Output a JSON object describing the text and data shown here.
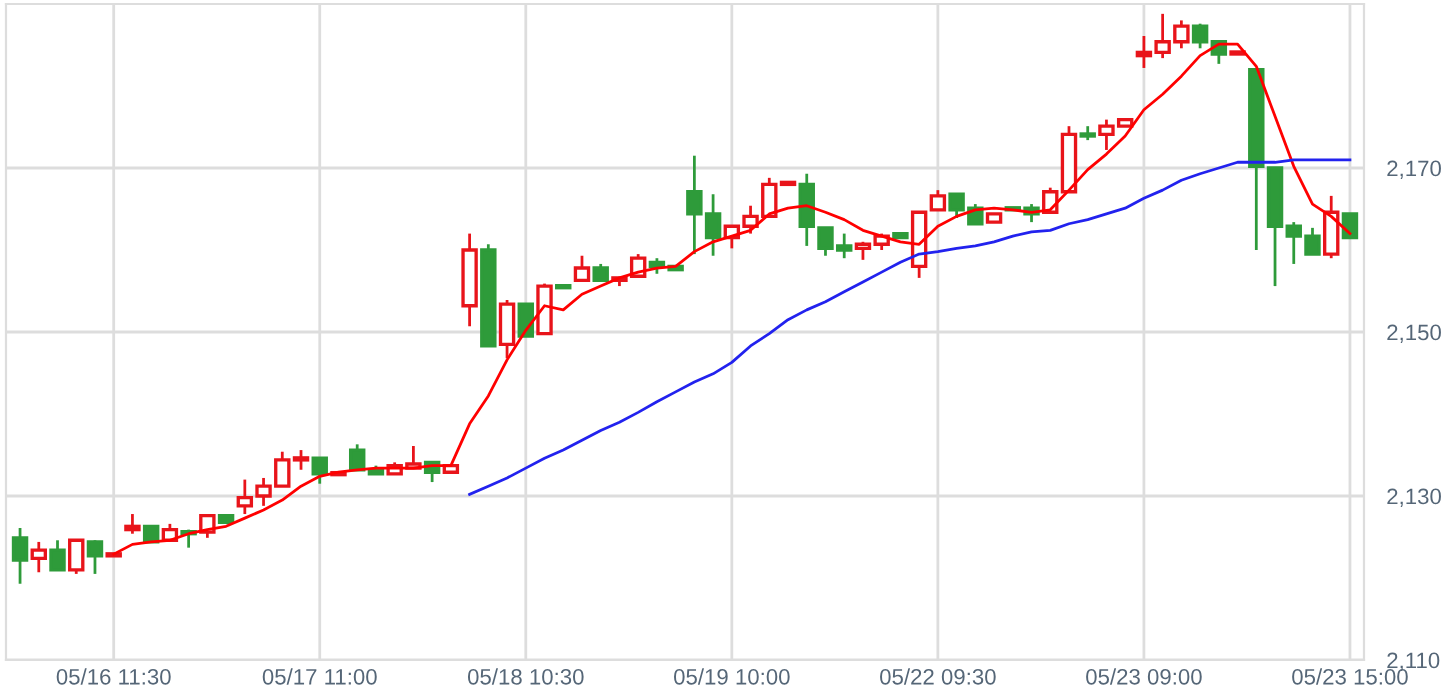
{
  "chart_data": {
    "type": "candlestick",
    "categories": [
      null,
      null,
      null,
      null,
      null,
      "05/16 11:30",
      null,
      null,
      null,
      null,
      null,
      null,
      null,
      null,
      null,
      null,
      "05/17 11:00",
      null,
      null,
      null,
      null,
      null,
      null,
      null,
      null,
      null,
      null,
      "05/18 10:30",
      null,
      null,
      null,
      null,
      null,
      null,
      null,
      null,
      null,
      null,
      "05/19 10:00",
      null,
      null,
      null,
      null,
      null,
      null,
      null,
      null,
      null,
      null,
      "05/22 09:30",
      null,
      null,
      null,
      null,
      null,
      null,
      null,
      null,
      null,
      null,
      "05/23 09:00",
      null,
      null,
      null,
      null,
      null,
      null,
      null,
      null,
      null,
      null,
      "05/23 15:00"
    ],
    "ohlc": [
      [
        2124.9,
        2126.1,
        2119.3,
        2122.2
      ],
      [
        2122.4,
        2124.4,
        2120.7,
        2123.4
      ],
      [
        2123.4,
        2124.6,
        2121.0,
        2121.0
      ],
      [
        2121.0,
        2124.6,
        2120.5,
        2124.6
      ],
      [
        2124.4,
        2124.6,
        2120.5,
        2122.7
      ],
      [
        2122.7,
        2122.9,
        2122.7,
        2122.9
      ],
      [
        2125.9,
        2127.8,
        2125.4,
        2126.3
      ],
      [
        2126.3,
        2126.3,
        2124.4,
        2124.4
      ],
      [
        2124.6,
        2126.6,
        2124.4,
        2125.9
      ],
      [
        2125.6,
        2125.9,
        2123.7,
        2125.4
      ],
      [
        2125.6,
        2127.6,
        2124.9,
        2127.6
      ],
      [
        2127.6,
        2127.6,
        2126.8,
        2126.8
      ],
      [
        2128.8,
        2132.0,
        2127.8,
        2129.8
      ],
      [
        2130.0,
        2132.2,
        2128.8,
        2131.2
      ],
      [
        2131.2,
        2135.4,
        2131.2,
        2134.4
      ],
      [
        2134.4,
        2135.6,
        2133.2,
        2134.6
      ],
      [
        2134.6,
        2134.6,
        2131.5,
        2132.7
      ],
      [
        2132.6,
        2132.7,
        2132.6,
        2132.7
      ],
      [
        2135.6,
        2136.3,
        2133.2,
        2133.2
      ],
      [
        2133.2,
        2133.7,
        2132.7,
        2132.7
      ],
      [
        2132.7,
        2134.1,
        2132.7,
        2133.7
      ],
      [
        2133.4,
        2136.1,
        2133.4,
        2133.9
      ],
      [
        2134.1,
        2134.1,
        2131.7,
        2132.9
      ],
      [
        2132.9,
        2133.7,
        2132.9,
        2133.7
      ],
      [
        2153.2,
        2162.0,
        2150.7,
        2160.0
      ],
      [
        2160.0,
        2160.7,
        2148.3,
        2148.3
      ],
      [
        2148.5,
        2153.9,
        2146.8,
        2153.4
      ],
      [
        2153.4,
        2153.4,
        2149.5,
        2149.5
      ],
      [
        2149.8,
        2155.9,
        2149.8,
        2155.6
      ],
      [
        2155.6,
        2155.6,
        2155.4,
        2155.4
      ],
      [
        2156.3,
        2159.3,
        2156.3,
        2157.8
      ],
      [
        2157.8,
        2158.3,
        2156.3,
        2156.3
      ],
      [
        2156.3,
        2156.6,
        2155.6,
        2156.6
      ],
      [
        2156.8,
        2159.5,
        2156.8,
        2159.0
      ],
      [
        2158.5,
        2159.0,
        2157.1,
        2158.0
      ],
      [
        2158.0,
        2158.0,
        2157.6,
        2157.6
      ],
      [
        2167.1,
        2171.5,
        2159.5,
        2164.4
      ],
      [
        2164.4,
        2166.8,
        2159.3,
        2161.5
      ],
      [
        2161.5,
        2162.9,
        2160.2,
        2162.9
      ],
      [
        2162.9,
        2165.4,
        2162.0,
        2164.1
      ],
      [
        2164.1,
        2168.8,
        2164.1,
        2168.0
      ],
      [
        2168.0,
        2168.2,
        2168.0,
        2168.2
      ],
      [
        2168.0,
        2169.3,
        2160.5,
        2162.9
      ],
      [
        2162.7,
        2162.7,
        2159.3,
        2160.2
      ],
      [
        2160.5,
        2162.0,
        2159.0,
        2160.0
      ],
      [
        2160.2,
        2161.0,
        2158.8,
        2160.7
      ],
      [
        2160.7,
        2162.0,
        2160.0,
        2161.7
      ],
      [
        2162.0,
        2162.0,
        2161.5,
        2161.5
      ],
      [
        2158.0,
        2164.6,
        2156.6,
        2164.6
      ],
      [
        2164.9,
        2167.3,
        2164.9,
        2166.6
      ],
      [
        2166.8,
        2166.8,
        2163.9,
        2164.9
      ],
      [
        2165.1,
        2165.6,
        2163.2,
        2163.2
      ],
      [
        2163.4,
        2164.4,
        2163.4,
        2164.4
      ],
      [
        2165.1,
        2165.1,
        2164.9,
        2164.9
      ],
      [
        2165.1,
        2165.6,
        2163.4,
        2164.4
      ],
      [
        2164.6,
        2167.6,
        2164.6,
        2167.1
      ],
      [
        2167.1,
        2175.1,
        2167.1,
        2174.1
      ],
      [
        2174.1,
        2175.1,
        2173.4,
        2173.9
      ],
      [
        2174.1,
        2175.9,
        2172.2,
        2175.1
      ],
      [
        2175.1,
        2175.9,
        2175.1,
        2175.9
      ],
      [
        2183.7,
        2186.1,
        2182.2,
        2184.1
      ],
      [
        2184.1,
        2188.8,
        2183.4,
        2185.4
      ],
      [
        2185.4,
        2188.0,
        2184.6,
        2187.3
      ],
      [
        2187.3,
        2187.6,
        2184.6,
        2185.4
      ],
      [
        2185.4,
        2185.4,
        2182.7,
        2183.9
      ],
      [
        2183.9,
        2184.1,
        2183.9,
        2184.1
      ],
      [
        2182.0,
        2182.0,
        2160.0,
        2170.2
      ],
      [
        2170.0,
        2170.0,
        2155.6,
        2162.9
      ],
      [
        2162.9,
        2163.4,
        2158.3,
        2161.7
      ],
      [
        2161.7,
        2162.7,
        2159.5,
        2159.5
      ],
      [
        2159.5,
        2166.6,
        2159.0,
        2164.6
      ],
      [
        2164.4,
        2164.4,
        2161.5,
        2161.5
      ]
    ],
    "colors": [
      "#2e9b3a",
      "#e8141a",
      "#2e9b3a",
      "#e8141a",
      "#2e9b3a",
      "#e8141a",
      "#e8141a",
      "#2e9b3a",
      "#e8141a",
      "#2e9b3a",
      "#e8141a",
      "#2e9b3a",
      "#e8141a",
      "#e8141a",
      "#e8141a",
      "#e8141a",
      "#2e9b3a",
      "#e8141a",
      "#2e9b3a",
      "#2e9b3a",
      "#e8141a",
      "#e8141a",
      "#2e9b3a",
      "#e8141a",
      "#e8141a",
      "#2e9b3a",
      "#e8141a",
      "#2e9b3a",
      "#e8141a",
      "#2e9b3a",
      "#e8141a",
      "#2e9b3a",
      "#e8141a",
      "#e8141a",
      "#2e9b3a",
      "#2e9b3a",
      "#2e9b3a",
      "#2e9b3a",
      "#e8141a",
      "#e8141a",
      "#e8141a",
      "#e8141a",
      "#2e9b3a",
      "#2e9b3a",
      "#2e9b3a",
      "#e8141a",
      "#e8141a",
      "#2e9b3a",
      "#e8141a",
      "#e8141a",
      "#2e9b3a",
      "#2e9b3a",
      "#e8141a",
      "#2e9b3a",
      "#2e9b3a",
      "#e8141a",
      "#e8141a",
      "#2e9b3a",
      "#e8141a",
      "#e8141a",
      "#e8141a",
      "#e8141a",
      "#e8141a",
      "#2e9b3a",
      "#2e9b3a",
      "#e8141a",
      "#2e9b3a",
      "#2e9b3a",
      "#2e9b3a",
      "#2e9b3a",
      "#e8141a",
      "#2e9b3a"
    ],
    "series": [
      {
        "type": "line",
        "color": "#ff0000",
        "values": [
          null,
          null,
          null,
          null,
          null,
          2122.9,
          2124.1,
          2124.4,
          2124.6,
          2125.4,
          2125.9,
          2126.3,
          2127.3,
          2128.3,
          2129.5,
          2131.2,
          2132.4,
          2132.9,
          2133.2,
          2133.4,
          2133.4,
          2133.4,
          2133.7,
          2133.7,
          2138.8,
          2142.2,
          2146.6,
          2150.2,
          2153.2,
          2152.7,
          2154.6,
          2155.6,
          2156.6,
          2157.3,
          2157.8,
          2158.0,
          2159.8,
          2161.0,
          2161.7,
          2162.4,
          2164.4,
          2165.1,
          2165.4,
          2164.6,
          2163.7,
          2162.4,
          2161.7,
          2161.0,
          2160.7,
          2162.9,
          2164.1,
          2164.9,
          2165.1,
          2164.9,
          2164.6,
          2164.9,
          2167.3,
          2169.8,
          2171.7,
          2173.9,
          2177.1,
          2179.0,
          2181.2,
          2183.7,
          2185.1,
          2185.1,
          2182.4,
          2176.3,
          2170.2,
          2165.6,
          2164.1,
          2162.0
        ]
      },
      {
        "type": "line",
        "color": "#2222ee",
        "values": [
          null,
          null,
          null,
          null,
          null,
          null,
          null,
          null,
          null,
          null,
          null,
          null,
          null,
          null,
          null,
          null,
          null,
          null,
          null,
          null,
          null,
          null,
          null,
          null,
          2130.2,
          2131.2,
          2132.2,
          2133.4,
          2134.6,
          2135.6,
          2136.8,
          2138.0,
          2139.0,
          2140.2,
          2141.5,
          2142.7,
          2143.9,
          2144.9,
          2146.3,
          2148.3,
          2149.8,
          2151.5,
          2152.7,
          2153.7,
          2154.9,
          2156.1,
          2157.3,
          2158.5,
          2159.5,
          2159.8,
          2160.2,
          2160.5,
          2161.0,
          2161.7,
          2162.2,
          2162.4,
          2163.2,
          2163.7,
          2164.4,
          2165.1,
          2166.3,
          2167.3,
          2168.5,
          2169.3,
          2170.0,
          2170.7,
          2170.7,
          2170.7,
          2171.0,
          2171.0,
          2171.0,
          2171.0
        ]
      }
    ],
    "ylim": [
      2110,
      2190
    ],
    "yticks": [
      {
        "value": 2110,
        "label": "2,110"
      },
      {
        "value": 2130,
        "label": "2,130"
      },
      {
        "value": 2150,
        "label": "2,150"
      },
      {
        "value": 2170,
        "label": "2,170"
      }
    ],
    "grid": true
  }
}
